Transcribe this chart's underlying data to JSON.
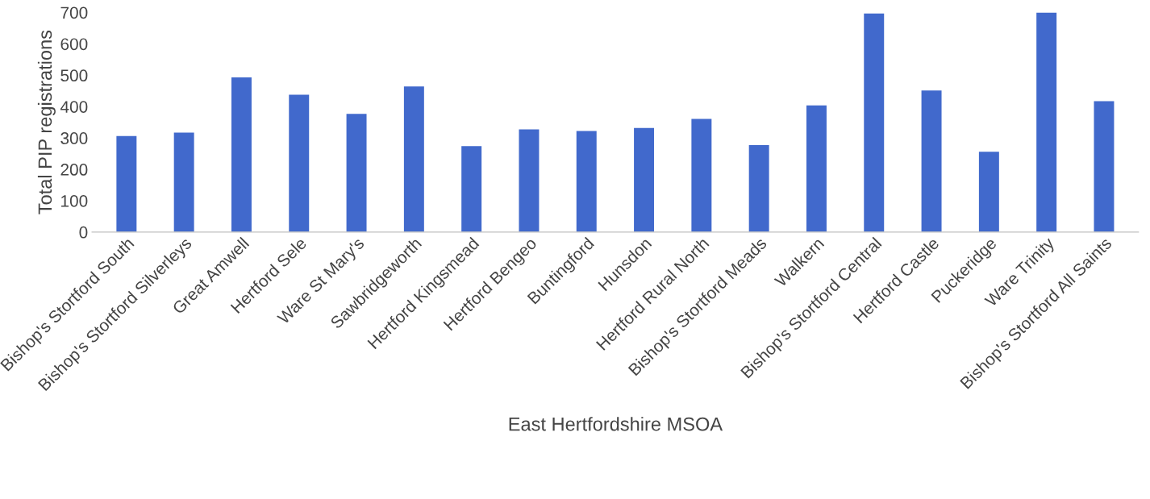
{
  "chart_data": {
    "type": "bar",
    "xlabel": "East Hertfordshire MSOA",
    "ylabel": "Total PIP registrations",
    "categories": [
      "Bishop's Stortford South",
      "Bishop's Stortford Silverleys",
      "Great Amwell",
      "Hertford Sele",
      "Ware St Mary's",
      "Sawbridgeworth",
      "Hertford Kingsmead",
      "Hertford Bengeo",
      "Buntingford",
      "Hunsdon",
      "Hertford Rural North",
      "Bishop's Stortford Meads",
      "Walkern",
      "Bishop's Stortford Central",
      "Hertford Castle",
      "Puckeridge",
      "Ware Trinity",
      "Bishop's Stortford All Saints"
    ],
    "values": [
      306,
      317,
      493,
      438,
      377,
      464,
      274,
      327,
      322,
      332,
      361,
      277,
      404,
      697,
      451,
      256,
      700,
      417
    ],
    "color": "#4169cc",
    "ylim": [
      0,
      700
    ],
    "yticks": [
      0,
      100,
      200,
      300,
      400,
      500,
      600,
      700
    ],
    "grid": false
  }
}
